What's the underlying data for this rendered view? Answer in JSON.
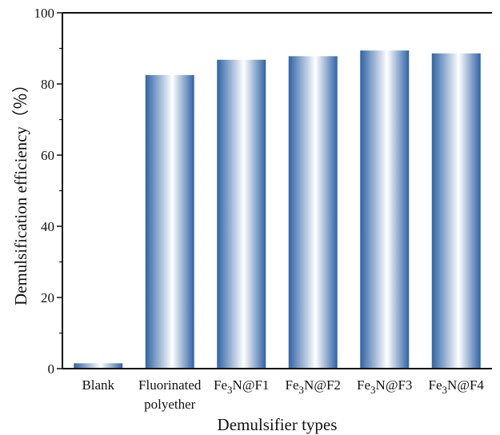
{
  "chart_data": {
    "type": "bar",
    "categories": [
      {
        "lines": [
          {
            "parts": [
              {
                "t": "Blank"
              }
            ]
          }
        ]
      },
      {
        "lines": [
          {
            "parts": [
              {
                "t": "Fluorinated"
              }
            ]
          },
          {
            "parts": [
              {
                "t": "polyether"
              }
            ]
          }
        ]
      },
      {
        "lines": [
          {
            "parts": [
              {
                "t": "Fe"
              },
              {
                "t": "3",
                "sub": true
              },
              {
                "t": "N@F1"
              }
            ]
          }
        ]
      },
      {
        "lines": [
          {
            "parts": [
              {
                "t": "Fe"
              },
              {
                "t": "3",
                "sub": true
              },
              {
                "t": "N@F2"
              }
            ]
          }
        ]
      },
      {
        "lines": [
          {
            "parts": [
              {
                "t": "Fe"
              },
              {
                "t": "3",
                "sub": true
              },
              {
                "t": "N@F3"
              }
            ]
          }
        ]
      },
      {
        "lines": [
          {
            "parts": [
              {
                "t": "Fe"
              },
              {
                "t": "3",
                "sub": true
              },
              {
                "t": "N@F4"
              }
            ]
          }
        ]
      }
    ],
    "values": [
      1.5,
      82.5,
      86.8,
      87.8,
      89.4,
      88.6
    ],
    "ylim": [
      0,
      100
    ],
    "yticks": [
      0,
      20,
      40,
      60,
      80,
      100
    ],
    "xlabel": "Demulsifier types",
    "ylabel": "Demulsification efficiency（％）",
    "colors": {
      "bar_edge": "#2f63a6",
      "bar_center": "#ffffff",
      "axis": "#111111"
    }
  }
}
